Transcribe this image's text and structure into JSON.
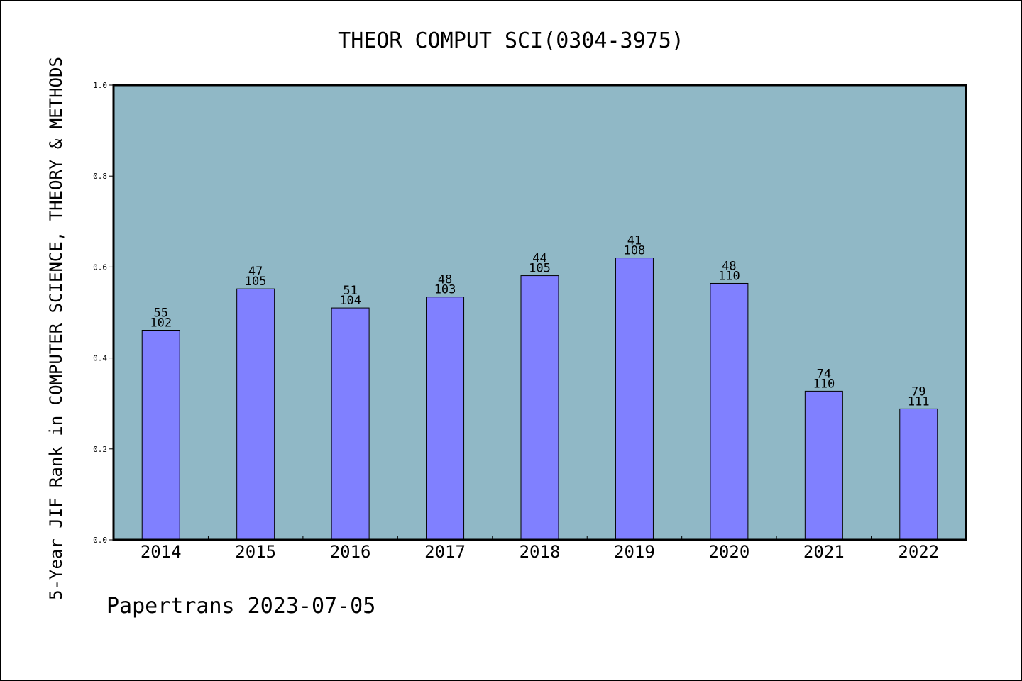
{
  "chart_data": {
    "type": "bar",
    "title": "THEOR COMPUT SCI(0304-3975)",
    "xlabel": "",
    "ylabel": "5-Year JIF Rank in COMPUTER SCIENCE, THEORY & METHODS",
    "categories": [
      "2014",
      "2015",
      "2016",
      "2017",
      "2018",
      "2019",
      "2020",
      "2021",
      "2022"
    ],
    "values": [
      0.461,
      0.552,
      0.51,
      0.534,
      0.581,
      0.62,
      0.564,
      0.327,
      0.288
    ],
    "labels_top": [
      "55",
      "47",
      "51",
      "48",
      "44",
      "41",
      "48",
      "74",
      "79"
    ],
    "labels_bottom": [
      "102",
      "105",
      "104",
      "103",
      "105",
      "108",
      "110",
      "110",
      "111"
    ],
    "ylim": [
      0,
      1.0
    ],
    "yticks": [
      "0.0",
      "0.2",
      "0.4",
      "0.6",
      "0.8",
      "1.0"
    ],
    "grid": false,
    "legend": "none",
    "colors": {
      "plot_background": "#90B8C6",
      "bar_fill": "#8080FF",
      "bar_stroke": "#000000",
      "axis": "#000000"
    }
  },
  "footer": {
    "credit": "Papertrans 2023-07-05"
  }
}
